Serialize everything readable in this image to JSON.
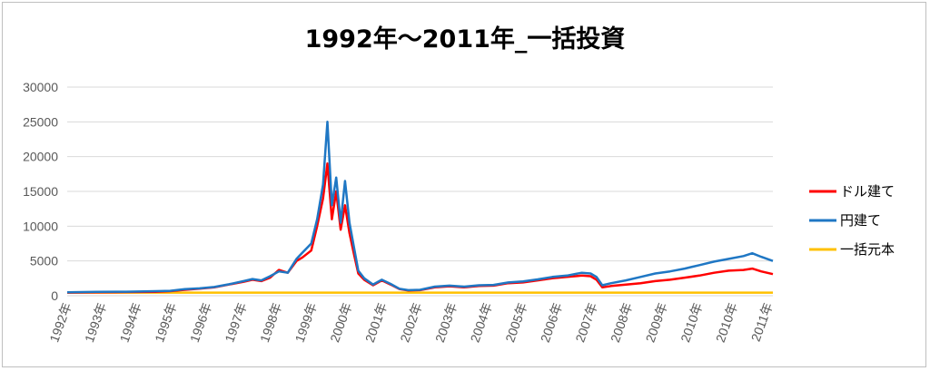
{
  "chart_data": {
    "type": "line",
    "title": "1992年～2011年_一括投資",
    "xlabel": "",
    "ylabel": "",
    "ylim": [
      0,
      30000
    ],
    "y_ticks": [
      "0",
      "5000",
      "10000",
      "15000",
      "20000",
      "25000",
      "30000"
    ],
    "x_tick_labels": [
      "1992年",
      "1993年",
      "1994年",
      "1995年",
      "1996年",
      "1997年",
      "1998年",
      "1999年",
      "2000年",
      "2001年",
      "2002年",
      "2003年",
      "2004年",
      "2005年",
      "2006年",
      "2007年",
      "2008年",
      "2009年",
      "2010年",
      "2010年",
      "2011年"
    ],
    "grid": "horizontal",
    "legend_position": "right",
    "series": [
      {
        "name": "ドル建て",
        "color": "#ff0000",
        "points": [
          [
            0,
            450
          ],
          [
            1,
            500
          ],
          [
            2,
            520
          ],
          [
            3,
            560
          ],
          [
            3.5,
            650
          ],
          [
            4,
            850
          ],
          [
            4.5,
            1000
          ],
          [
            5,
            1200
          ],
          [
            5.5,
            1600
          ],
          [
            6,
            2000
          ],
          [
            6.3,
            2300
          ],
          [
            6.6,
            2100
          ],
          [
            6.9,
            2600
          ],
          [
            7.2,
            3700
          ],
          [
            7.5,
            3300
          ],
          [
            7.8,
            5000
          ],
          [
            8.0,
            5500
          ],
          [
            8.3,
            6500
          ],
          [
            8.5,
            10000
          ],
          [
            8.7,
            14000
          ],
          [
            8.85,
            19000
          ],
          [
            9.0,
            11000
          ],
          [
            9.15,
            15000
          ],
          [
            9.3,
            9500
          ],
          [
            9.45,
            13000
          ],
          [
            9.6,
            9000
          ],
          [
            9.75,
            6000
          ],
          [
            9.9,
            3200
          ],
          [
            10.1,
            2300
          ],
          [
            10.4,
            1500
          ],
          [
            10.7,
            2200
          ],
          [
            11.0,
            1600
          ],
          [
            11.3,
            950
          ],
          [
            11.6,
            750
          ],
          [
            12.0,
            800
          ],
          [
            12.5,
            1200
          ],
          [
            13.0,
            1350
          ],
          [
            13.5,
            1200
          ],
          [
            14.0,
            1400
          ],
          [
            14.5,
            1450
          ],
          [
            15.0,
            1800
          ],
          [
            15.5,
            1900
          ],
          [
            16.0,
            2200
          ],
          [
            16.5,
            2500
          ],
          [
            17.0,
            2700
          ],
          [
            17.5,
            2900
          ],
          [
            17.8,
            2800
          ],
          [
            18.0,
            2300
          ],
          [
            18.2,
            1200
          ],
          [
            18.5,
            1400
          ],
          [
            19.0,
            1600
          ],
          [
            19.5,
            1800
          ],
          [
            20.0,
            2100
          ],
          [
            20.5,
            2300
          ],
          [
            21.0,
            2600
          ],
          [
            21.5,
            2900
          ],
          [
            22.0,
            3300
          ],
          [
            22.5,
            3600
          ],
          [
            23.0,
            3700
          ],
          [
            23.3,
            3900
          ],
          [
            23.6,
            3500
          ],
          [
            24.0,
            3100
          ]
        ]
      },
      {
        "name": "円建て",
        "color": "#1f77c4",
        "points": [
          [
            0,
            480
          ],
          [
            1,
            550
          ],
          [
            2,
            580
          ],
          [
            3,
            650
          ],
          [
            3.5,
            700
          ],
          [
            4,
            950
          ],
          [
            4.5,
            1050
          ],
          [
            5,
            1250
          ],
          [
            5.5,
            1650
          ],
          [
            6,
            2100
          ],
          [
            6.3,
            2400
          ],
          [
            6.6,
            2200
          ],
          [
            6.9,
            2800
          ],
          [
            7.2,
            3500
          ],
          [
            7.5,
            3300
          ],
          [
            7.8,
            5300
          ],
          [
            8.0,
            6200
          ],
          [
            8.3,
            7500
          ],
          [
            8.5,
            11000
          ],
          [
            8.7,
            16000
          ],
          [
            8.85,
            25000
          ],
          [
            9.0,
            13000
          ],
          [
            9.15,
            17000
          ],
          [
            9.3,
            10500
          ],
          [
            9.45,
            16500
          ],
          [
            9.6,
            10500
          ],
          [
            9.75,
            7000
          ],
          [
            9.9,
            3600
          ],
          [
            10.1,
            2500
          ],
          [
            10.4,
            1600
          ],
          [
            10.7,
            2300
          ],
          [
            11.0,
            1700
          ],
          [
            11.3,
            1000
          ],
          [
            11.6,
            800
          ],
          [
            12.0,
            850
          ],
          [
            12.5,
            1300
          ],
          [
            13.0,
            1450
          ],
          [
            13.5,
            1300
          ],
          [
            14.0,
            1500
          ],
          [
            14.5,
            1550
          ],
          [
            15.0,
            1900
          ],
          [
            15.5,
            2050
          ],
          [
            16.0,
            2350
          ],
          [
            16.5,
            2700
          ],
          [
            17.0,
            2900
          ],
          [
            17.5,
            3300
          ],
          [
            17.8,
            3200
          ],
          [
            18.0,
            2700
          ],
          [
            18.2,
            1500
          ],
          [
            18.5,
            1800
          ],
          [
            19.0,
            2200
          ],
          [
            19.5,
            2700
          ],
          [
            20.0,
            3200
          ],
          [
            20.5,
            3500
          ],
          [
            21.0,
            3900
          ],
          [
            21.5,
            4400
          ],
          [
            22.0,
            4900
          ],
          [
            22.5,
            5300
          ],
          [
            23.0,
            5700
          ],
          [
            23.3,
            6100
          ],
          [
            23.6,
            5600
          ],
          [
            24.0,
            5000
          ]
        ]
      },
      {
        "name": "一括元本",
        "color": "#ffc000",
        "points": [
          [
            0,
            450
          ],
          [
            24.0,
            450
          ]
        ]
      }
    ]
  }
}
